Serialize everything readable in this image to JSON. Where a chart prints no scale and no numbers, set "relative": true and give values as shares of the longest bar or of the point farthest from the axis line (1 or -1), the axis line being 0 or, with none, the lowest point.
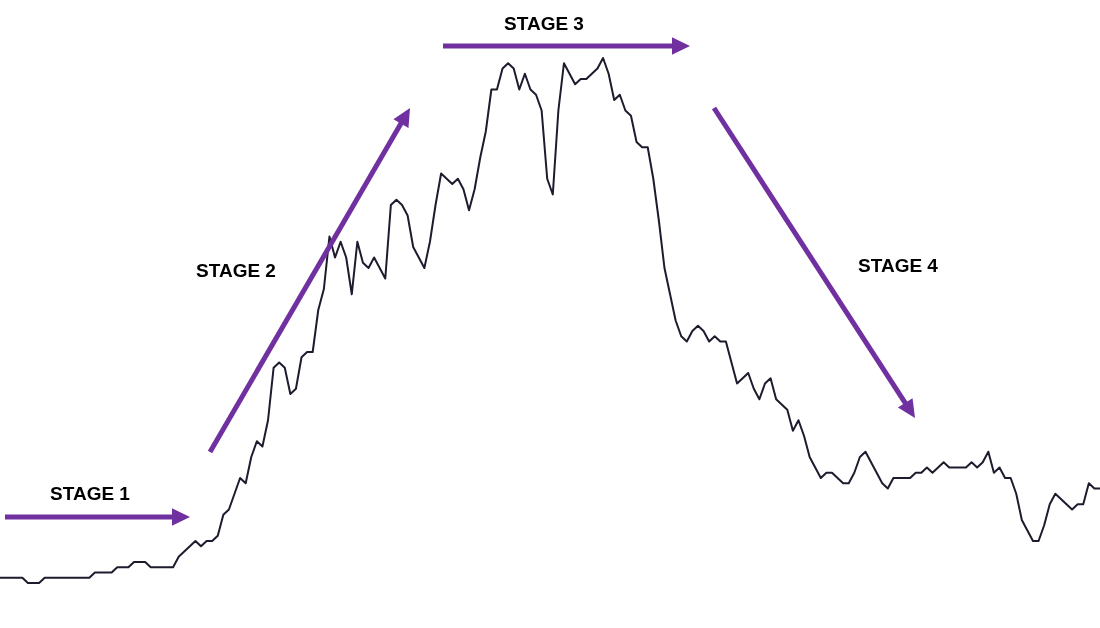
{
  "chart_data": {
    "type": "line",
    "relative": true,
    "color": "#1c1c2e",
    "marker": "none",
    "line_style": "solid",
    "grid": false,
    "tick_labels": false,
    "categories": [
      null,
      null,
      null,
      null,
      null,
      null,
      null,
      null,
      null,
      null,
      null,
      null,
      null,
      null,
      null,
      null,
      null,
      null,
      null,
      null,
      null,
      null,
      null,
      null,
      null,
      null,
      null,
      null,
      null,
      null,
      null,
      null,
      null,
      null,
      null,
      null,
      null,
      null,
      null,
      null,
      null,
      null,
      null,
      null,
      null,
      null,
      null,
      null,
      null,
      null,
      null,
      null,
      null,
      null,
      null,
      null,
      null,
      null,
      null,
      null,
      null,
      null,
      null,
      null,
      null,
      null,
      null,
      null,
      null,
      null,
      null,
      null,
      null,
      null,
      null,
      null,
      null,
      null,
      null,
      null,
      null,
      null,
      null,
      null,
      null,
      null,
      null,
      null,
      null,
      null,
      null,
      null,
      null,
      null,
      null,
      null,
      null,
      null,
      null,
      null,
      null,
      null,
      null,
      null,
      null,
      null,
      null,
      null,
      null,
      null,
      null,
      null,
      null,
      null,
      null,
      null,
      null,
      null,
      null,
      null,
      null,
      null,
      null,
      null,
      null,
      null,
      null,
      null,
      null,
      null,
      null,
      null,
      null,
      null,
      null,
      null,
      null,
      null,
      null,
      null,
      null,
      null,
      null,
      null,
      null,
      null,
      null,
      null,
      null,
      null,
      null,
      null,
      null,
      null,
      null,
      null,
      null,
      null,
      null,
      null,
      null,
      null,
      null,
      null,
      null,
      null,
      null,
      null,
      null,
      null,
      null,
      null,
      null,
      null,
      null,
      null,
      null,
      null,
      null,
      null,
      null,
      null,
      null,
      null,
      null,
      null,
      null,
      null,
      null,
      null,
      null,
      null,
      null,
      null,
      null,
      null,
      null,
      null
    ],
    "values": [
      0.01,
      0.01,
      0.01,
      0.01,
      0.01,
      0.0,
      0.0,
      0.0,
      0.01,
      0.01,
      0.01,
      0.01,
      0.01,
      0.01,
      0.01,
      0.01,
      0.01,
      0.02,
      0.02,
      0.02,
      0.02,
      0.03,
      0.03,
      0.03,
      0.04,
      0.04,
      0.04,
      0.03,
      0.03,
      0.03,
      0.03,
      0.03,
      0.05,
      0.06,
      0.07,
      0.08,
      0.07,
      0.08,
      0.08,
      0.09,
      0.13,
      0.14,
      0.17,
      0.2,
      0.19,
      0.24,
      0.27,
      0.26,
      0.31,
      0.41,
      0.42,
      0.41,
      0.36,
      0.37,
      0.43,
      0.44,
      0.44,
      0.52,
      0.56,
      0.66,
      0.62,
      0.65,
      0.62,
      0.55,
      0.65,
      0.61,
      0.6,
      0.62,
      0.6,
      0.58,
      0.72,
      0.73,
      0.72,
      0.7,
      0.64,
      0.62,
      0.6,
      0.65,
      0.72,
      0.78,
      0.77,
      0.76,
      0.77,
      0.75,
      0.71,
      0.75,
      0.81,
      0.86,
      0.94,
      0.94,
      0.98,
      0.99,
      0.98,
      0.94,
      0.97,
      0.94,
      0.93,
      0.9,
      0.77,
      0.74,
      0.9,
      0.99,
      0.97,
      0.95,
      0.96,
      0.96,
      0.97,
      0.98,
      1.0,
      0.97,
      0.92,
      0.93,
      0.9,
      0.89,
      0.84,
      0.83,
      0.83,
      0.77,
      0.69,
      0.6,
      0.55,
      0.5,
      0.47,
      0.46,
      0.48,
      0.49,
      0.48,
      0.46,
      0.47,
      0.46,
      0.46,
      0.42,
      0.38,
      0.39,
      0.4,
      0.37,
      0.35,
      0.38,
      0.39,
      0.35,
      0.34,
      0.33,
      0.29,
      0.31,
      0.28,
      0.24,
      0.22,
      0.2,
      0.21,
      0.21,
      0.2,
      0.19,
      0.19,
      0.21,
      0.24,
      0.25,
      0.23,
      0.21,
      0.19,
      0.18,
      0.2,
      0.2,
      0.2,
      0.2,
      0.21,
      0.21,
      0.22,
      0.21,
      0.22,
      0.23,
      0.22,
      0.22,
      0.22,
      0.22,
      0.23,
      0.22,
      0.23,
      0.25,
      0.21,
      0.22,
      0.2,
      0.2,
      0.17,
      0.12,
      0.1,
      0.08,
      0.08,
      0.11,
      0.15,
      0.17,
      0.16,
      0.15,
      0.14,
      0.15,
      0.15,
      0.19,
      0.18,
      0.18
    ],
    "annotations": [
      "STAGE 1",
      "STAGE 2",
      "STAGE 3",
      "STAGE 4"
    ]
  }
}
